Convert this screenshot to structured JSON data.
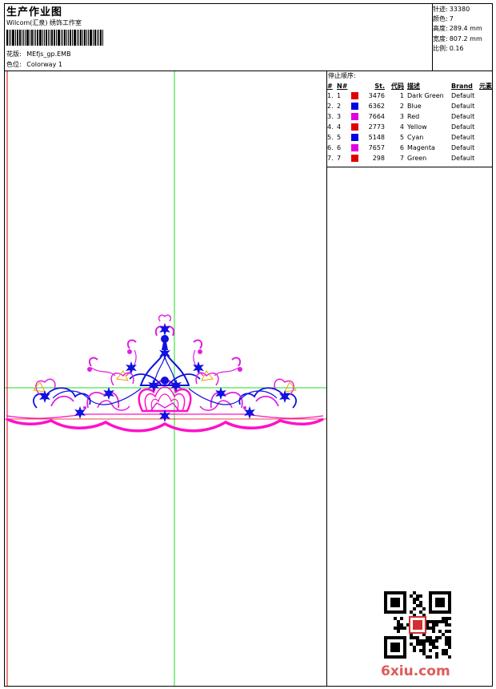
{
  "header": {
    "title": "生产作业图",
    "subtitle": "Wilcom(汇泉) 绣饰工作室",
    "design_label": "花版:",
    "design_value": "MEfjs_gp.EMB",
    "colorway_label": "色位:",
    "colorway_value": "Colorway 1"
  },
  "stats": [
    {
      "label": "针迹:",
      "value": "33380"
    },
    {
      "label": "颜色:",
      "value": "7"
    },
    {
      "label": "高度:",
      "value": "289.4 mm"
    },
    {
      "label": "宽度:",
      "value": "807.2 mm"
    },
    {
      "label": "比例:",
      "value": "0.16"
    }
  ],
  "stop_sequence": {
    "title": "停止顺序:",
    "headers": {
      "index": "#",
      "needle": "N#",
      "stitches": "St.",
      "code": "代码",
      "description": "描述",
      "brand": "Brand",
      "element": "元素"
    },
    "rows": [
      {
        "index": "1.",
        "needle": "1",
        "color": "#e00000",
        "stitches": "3476",
        "code": "1",
        "description": "Dark Green",
        "brand": "Default"
      },
      {
        "index": "2.",
        "needle": "2",
        "color": "#0000e0",
        "stitches": "6362",
        "code": "2",
        "description": "Blue",
        "brand": "Default"
      },
      {
        "index": "3.",
        "needle": "3",
        "color": "#e000e0",
        "stitches": "7664",
        "code": "3",
        "description": "Red",
        "brand": "Default"
      },
      {
        "index": "4.",
        "needle": "4",
        "color": "#e00000",
        "stitches": "2773",
        "code": "4",
        "description": "Yellow",
        "brand": "Default"
      },
      {
        "index": "5.",
        "needle": "5",
        "color": "#0000e0",
        "stitches": "5148",
        "code": "5",
        "description": "Cyan",
        "brand": "Default"
      },
      {
        "index": "6.",
        "needle": "6",
        "color": "#e000e0",
        "stitches": "7657",
        "code": "6",
        "description": "Magenta",
        "brand": "Default"
      },
      {
        "index": "7.",
        "needle": "7",
        "color": "#e00000",
        "stitches": "298",
        "code": "7",
        "description": "Green",
        "brand": "Default"
      }
    ]
  },
  "design_colors": {
    "outline": "#ff10c8",
    "petal": "#1010e0",
    "accent": "#e020e0",
    "leaf": "#f0a000",
    "guide": "#22dd22",
    "baseline": "#e00000"
  },
  "watermark": "6xiu.com"
}
